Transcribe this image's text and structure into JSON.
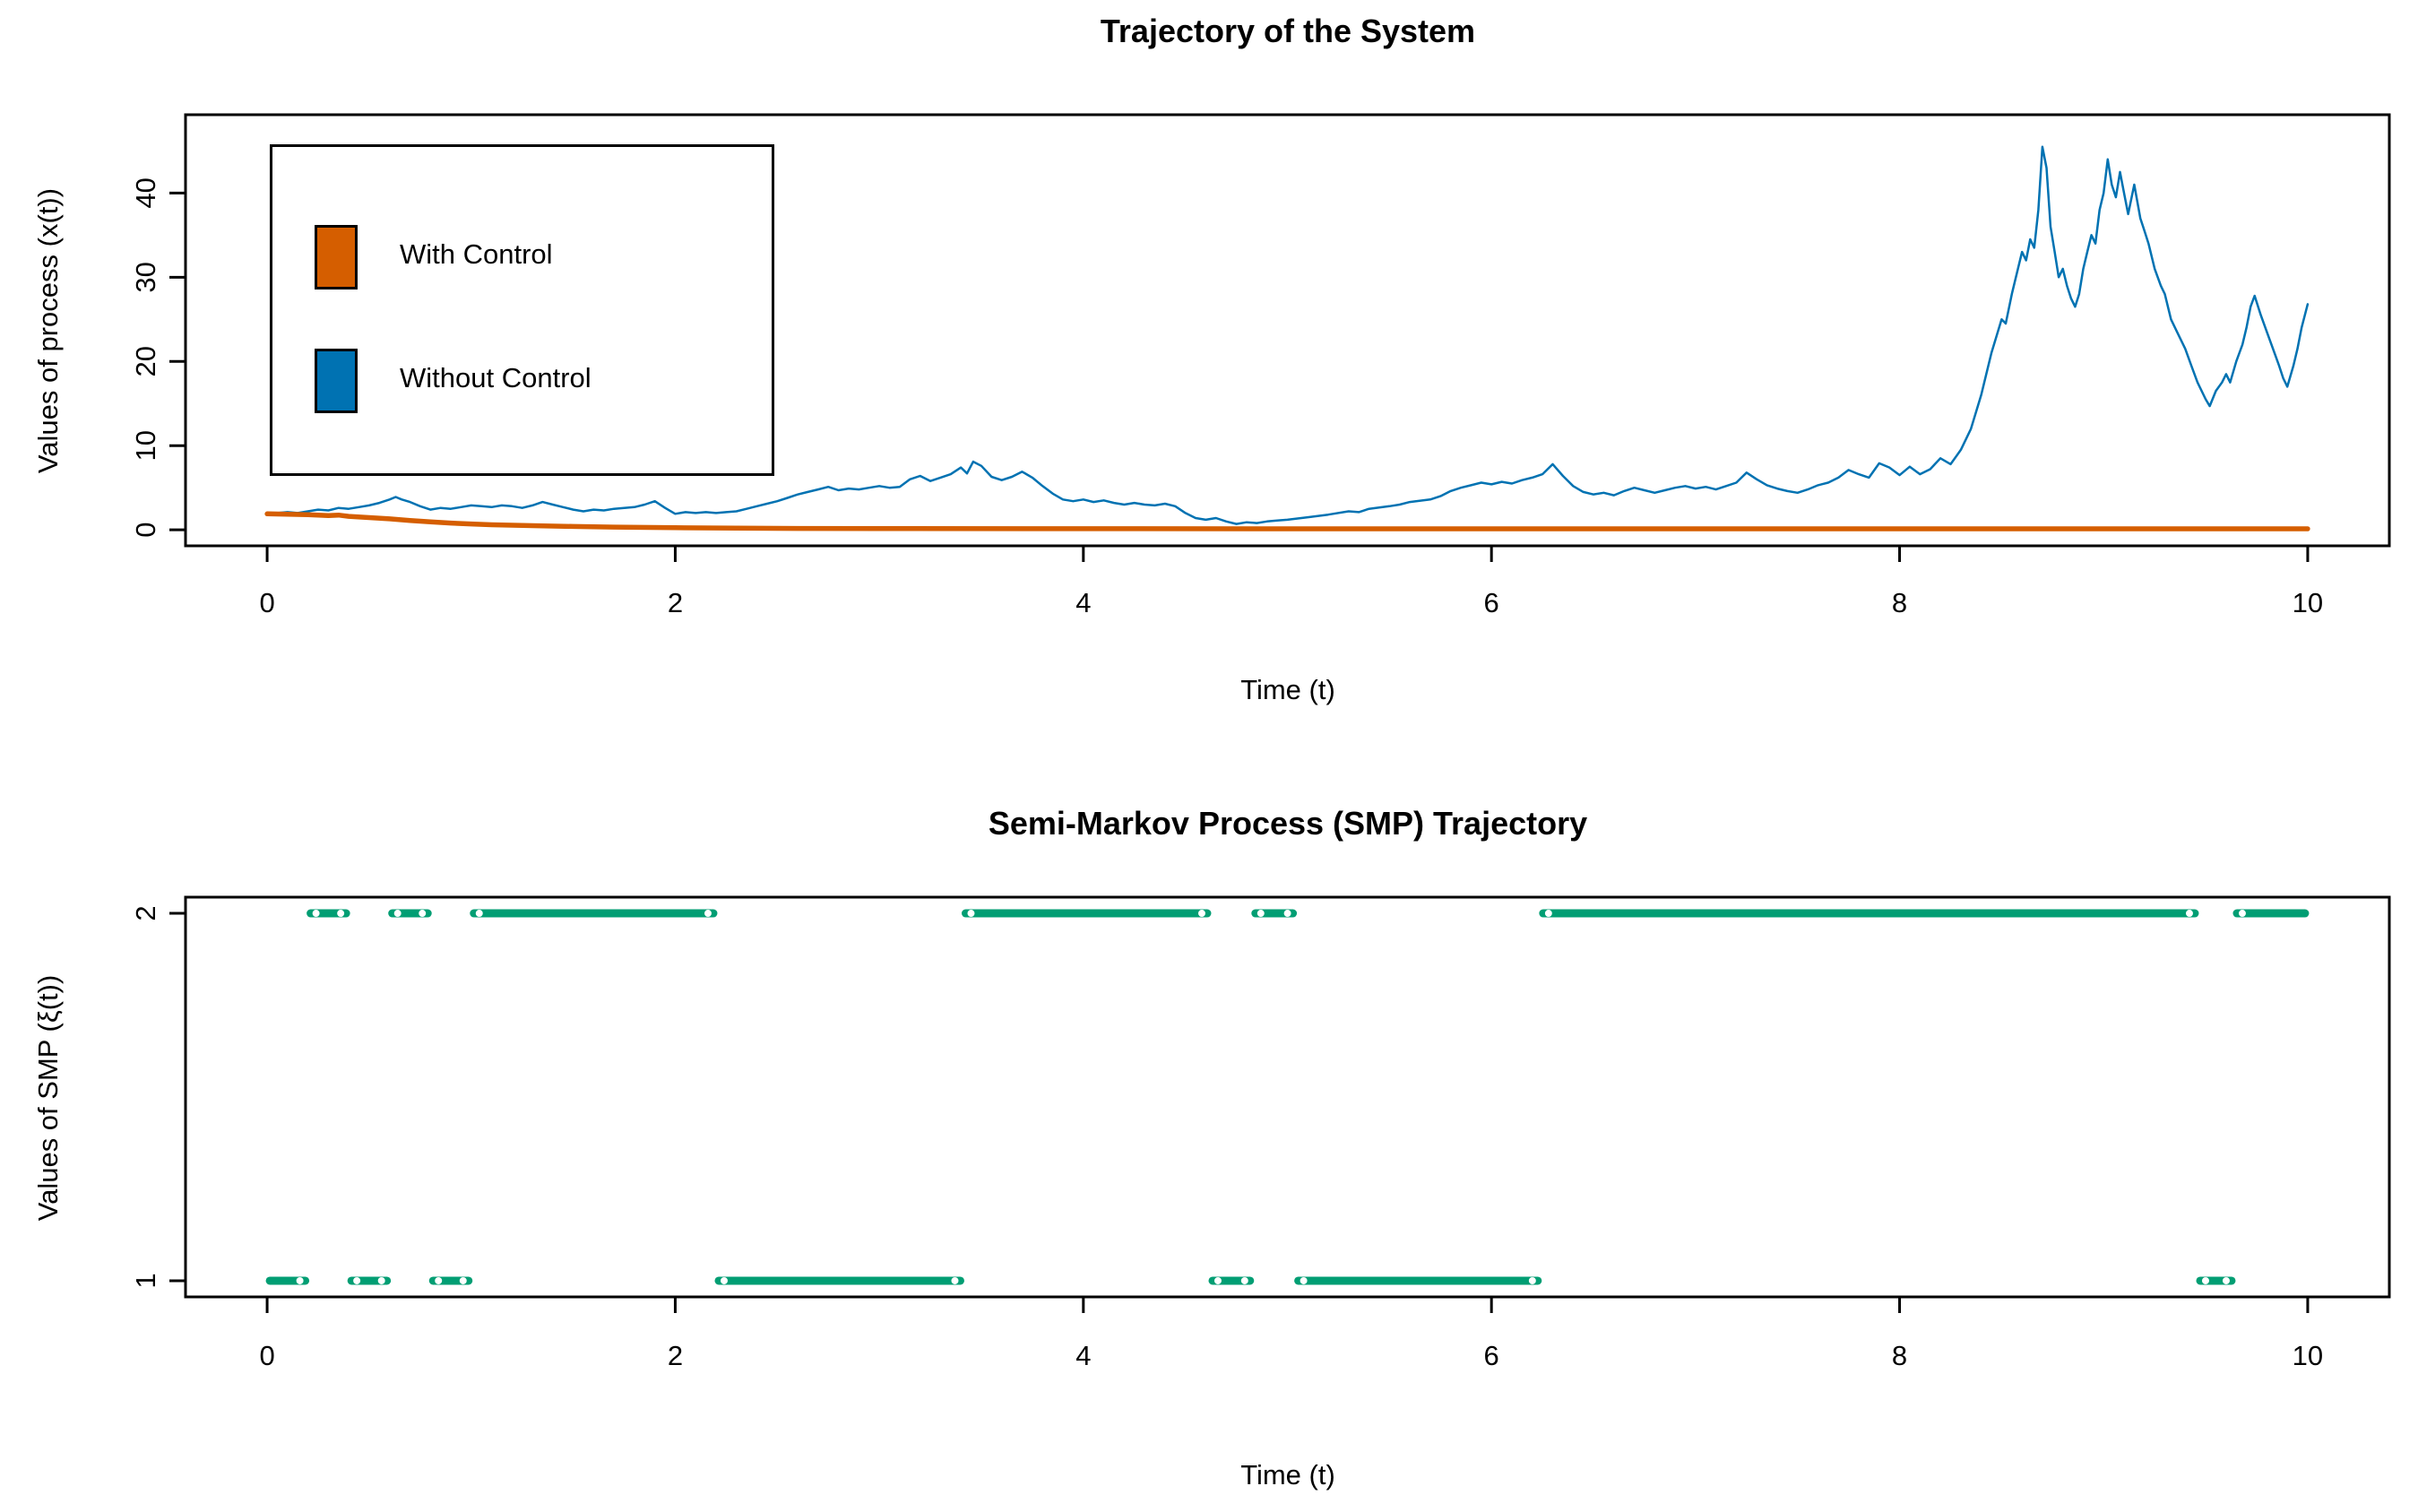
{
  "figure": {
    "background": "#ffffff",
    "axis_color": "#000000"
  },
  "chart_data": [
    {
      "type": "line",
      "title": "Trajectory of the System",
      "xlabel": "Time (t)",
      "ylabel": "Values of process (x(t))",
      "xticks": [
        "0",
        "2",
        "4",
        "6",
        "8",
        "10"
      ],
      "xtick_values": [
        0,
        2,
        4,
        6,
        8,
        10
      ],
      "yticks": [
        "0",
        "10",
        "20",
        "30",
        "40"
      ],
      "ytick_values": [
        0,
        10,
        20,
        30,
        40
      ],
      "xlim": [
        -0.4,
        10.4
      ],
      "ylim": [
        -1.9,
        49.3
      ],
      "grid": false,
      "legend": {
        "position": "top-left",
        "entries": [
          {
            "label": "With Control",
            "color": "#D55E00"
          },
          {
            "label": "Without Control",
            "color": "#0072B2"
          }
        ]
      },
      "series": [
        {
          "name": "Without Control",
          "color": "#0072B2",
          "width": 2.5,
          "x": [
            0,
            0.05,
            0.1,
            0.15,
            0.2,
            0.25,
            0.3,
            0.35,
            0.4,
            0.45,
            0.5,
            0.55,
            0.6,
            0.63,
            0.66,
            0.7,
            0.75,
            0.8,
            0.85,
            0.9,
            0.95,
            1.0,
            1.05,
            1.1,
            1.15,
            1.2,
            1.25,
            1.3,
            1.35,
            1.4,
            1.45,
            1.5,
            1.55,
            1.6,
            1.65,
            1.7,
            1.75,
            1.8,
            1.85,
            1.9,
            1.95,
            2.0,
            2.05,
            2.1,
            2.15,
            2.2,
            2.25,
            2.3,
            2.35,
            2.4,
            2.45,
            2.5,
            2.55,
            2.6,
            2.65,
            2.7,
            2.75,
            2.8,
            2.85,
            2.9,
            2.95,
            3.0,
            3.05,
            3.1,
            3.15,
            3.2,
            3.25,
            3.3,
            3.35,
            3.4,
            3.43,
            3.46,
            3.5,
            3.55,
            3.6,
            3.65,
            3.7,
            3.75,
            3.8,
            3.85,
            3.9,
            3.95,
            4.0,
            4.05,
            4.1,
            4.15,
            4.2,
            4.25,
            4.3,
            4.35,
            4.4,
            4.45,
            4.5,
            4.55,
            4.6,
            4.65,
            4.7,
            4.75,
            4.8,
            4.85,
            4.9,
            4.95,
            5.0,
            5.1,
            5.2,
            5.3,
            5.35,
            5.4,
            5.5,
            5.55,
            5.6,
            5.7,
            5.75,
            5.8,
            5.85,
            5.9,
            5.95,
            6.0,
            6.05,
            6.1,
            6.15,
            6.2,
            6.25,
            6.3,
            6.35,
            6.4,
            6.45,
            6.5,
            6.55,
            6.6,
            6.65,
            6.7,
            6.75,
            6.8,
            6.85,
            6.9,
            6.95,
            7.0,
            7.05,
            7.1,
            7.15,
            7.2,
            7.25,
            7.3,
            7.35,
            7.4,
            7.45,
            7.5,
            7.55,
            7.6,
            7.65,
            7.7,
            7.75,
            7.8,
            7.85,
            7.9,
            7.95,
            8.0,
            8.05,
            8.1,
            8.15,
            8.2,
            8.25,
            8.3,
            8.35,
            8.4,
            8.45,
            8.5,
            8.52,
            8.55,
            8.58,
            8.6,
            8.62,
            8.64,
            8.66,
            8.68,
            8.7,
            8.72,
            8.74,
            8.76,
            8.78,
            8.8,
            8.82,
            8.84,
            8.86,
            8.88,
            8.9,
            8.92,
            8.94,
            8.96,
            8.98,
            9.0,
            9.02,
            9.04,
            9.06,
            9.08,
            9.1,
            9.12,
            9.15,
            9.18,
            9.2,
            9.22,
            9.25,
            9.28,
            9.3,
            9.33,
            9.36,
            9.4,
            9.43,
            9.46,
            9.5,
            9.52,
            9.55,
            9.58,
            9.6,
            9.62,
            9.65,
            9.68,
            9.7,
            9.72,
            9.74,
            9.77,
            9.8,
            9.83,
            9.86,
            9.88,
            9.9,
            9.93,
            9.95,
            9.97,
            10.0
          ],
          "y": [
            1.9,
            2.0,
            2.1,
            2.0,
            2.2,
            2.4,
            2.3,
            2.6,
            2.5,
            2.7,
            2.9,
            3.2,
            3.6,
            3.9,
            3.6,
            3.3,
            2.8,
            2.4,
            2.6,
            2.5,
            2.7,
            2.9,
            2.8,
            2.7,
            2.9,
            2.8,
            2.6,
            2.9,
            3.3,
            3.0,
            2.7,
            2.4,
            2.2,
            2.4,
            2.3,
            2.5,
            2.6,
            2.7,
            3.0,
            3.4,
            2.6,
            1.9,
            2.1,
            2.0,
            2.1,
            2.0,
            2.1,
            2.2,
            2.5,
            2.8,
            3.1,
            3.4,
            3.8,
            4.2,
            4.5,
            4.8,
            5.1,
            4.7,
            4.9,
            4.8,
            5.0,
            5.2,
            5.0,
            5.1,
            6.0,
            6.4,
            5.8,
            6.2,
            6.6,
            7.4,
            6.7,
            8.1,
            7.6,
            6.3,
            5.9,
            6.3,
            6.9,
            6.2,
            5.2,
            4.3,
            3.6,
            3.4,
            3.6,
            3.3,
            3.5,
            3.2,
            3.0,
            3.2,
            3.0,
            2.9,
            3.1,
            2.8,
            2.0,
            1.4,
            1.2,
            1.4,
            1.0,
            0.7,
            0.9,
            0.8,
            1.0,
            1.1,
            1.2,
            1.5,
            1.8,
            2.2,
            2.1,
            2.5,
            2.8,
            3.0,
            3.3,
            3.6,
            4.0,
            4.6,
            5.0,
            5.3,
            5.6,
            5.4,
            5.7,
            5.5,
            5.9,
            6.2,
            6.6,
            7.8,
            6.4,
            5.2,
            4.5,
            4.2,
            4.4,
            4.1,
            4.6,
            5.0,
            4.7,
            4.4,
            4.7,
            5.0,
            5.2,
            4.9,
            5.1,
            4.8,
            5.2,
            5.6,
            6.8,
            6.0,
            5.3,
            4.9,
            4.6,
            4.4,
            4.8,
            5.3,
            5.6,
            6.2,
            7.1,
            6.6,
            6.2,
            7.9,
            7.4,
            6.5,
            7.5,
            6.6,
            7.2,
            8.5,
            7.8,
            9.5,
            12,
            16,
            21,
            25,
            24.5,
            28,
            31,
            33,
            32,
            34.5,
            33.5,
            38,
            45.5,
            43,
            36,
            33,
            30,
            31,
            29,
            27.5,
            26.5,
            28,
            31,
            33,
            35,
            34,
            38,
            40,
            44,
            41,
            39.5,
            42.5,
            40,
            37.5,
            41,
            37,
            35.5,
            34,
            31,
            29,
            28,
            25,
            23.5,
            21.5,
            19.5,
            17.5,
            15.5,
            14.7,
            16.5,
            17.5,
            18.5,
            17.5,
            20,
            22,
            24,
            26.5,
            27.8,
            25.5,
            23.5,
            21.5,
            19.5,
            18,
            17,
            19.5,
            21.5,
            24,
            26.8
          ]
        },
        {
          "name": "With Control",
          "color": "#D55E00",
          "width": 5.5,
          "x": [
            0,
            0.1,
            0.2,
            0.3,
            0.35,
            0.4,
            0.5,
            0.6,
            0.7,
            0.8,
            0.9,
            1.0,
            1.1,
            1.2,
            1.3,
            1.5,
            1.7,
            2.0,
            2.3,
            2.6,
            3.0,
            4.0,
            5.0,
            6.0,
            7.0,
            8.0,
            9.0,
            10.0
          ],
          "y": [
            1.9,
            1.85,
            1.8,
            1.7,
            1.75,
            1.6,
            1.45,
            1.3,
            1.1,
            0.95,
            0.8,
            0.7,
            0.6,
            0.55,
            0.5,
            0.4,
            0.32,
            0.25,
            0.2,
            0.17,
            0.15,
            0.13,
            0.12,
            0.12,
            0.12,
            0.12,
            0.12,
            0.12
          ]
        }
      ]
    },
    {
      "type": "step-segments",
      "title": "Semi-Markov Process (SMP) Trajectory",
      "xlabel": "Time (t)",
      "ylabel": "Values of SMP (ξ(t))",
      "xticks": [
        "0",
        "2",
        "4",
        "6",
        "8",
        "10"
      ],
      "xtick_values": [
        0,
        2,
        4,
        6,
        8,
        10
      ],
      "yticks": [
        "1",
        "2"
      ],
      "ytick_values": [
        1,
        2
      ],
      "xlim": [
        -0.4,
        10.4
      ],
      "ylim": [
        0.956,
        2.044
      ],
      "grid": false,
      "color": "#009E73",
      "line_width": 9,
      "segments": [
        {
          "state": 1,
          "from": 0.0,
          "to": 0.2
        },
        {
          "state": 2,
          "from": 0.2,
          "to": 0.4
        },
        {
          "state": 1,
          "from": 0.4,
          "to": 0.6
        },
        {
          "state": 2,
          "from": 0.6,
          "to": 0.8
        },
        {
          "state": 1,
          "from": 0.8,
          "to": 1.0
        },
        {
          "state": 2,
          "from": 1.0,
          "to": 2.2
        },
        {
          "state": 1,
          "from": 2.2,
          "to": 3.41
        },
        {
          "state": 2,
          "from": 3.41,
          "to": 4.62
        },
        {
          "state": 1,
          "from": 4.62,
          "to": 4.83
        },
        {
          "state": 2,
          "from": 4.83,
          "to": 5.04
        },
        {
          "state": 1,
          "from": 5.04,
          "to": 6.24
        },
        {
          "state": 2,
          "from": 6.24,
          "to": 9.46
        },
        {
          "state": 1,
          "from": 9.46,
          "to": 9.64
        },
        {
          "state": 2,
          "from": 9.64,
          "to": 10.0
        }
      ]
    }
  ]
}
